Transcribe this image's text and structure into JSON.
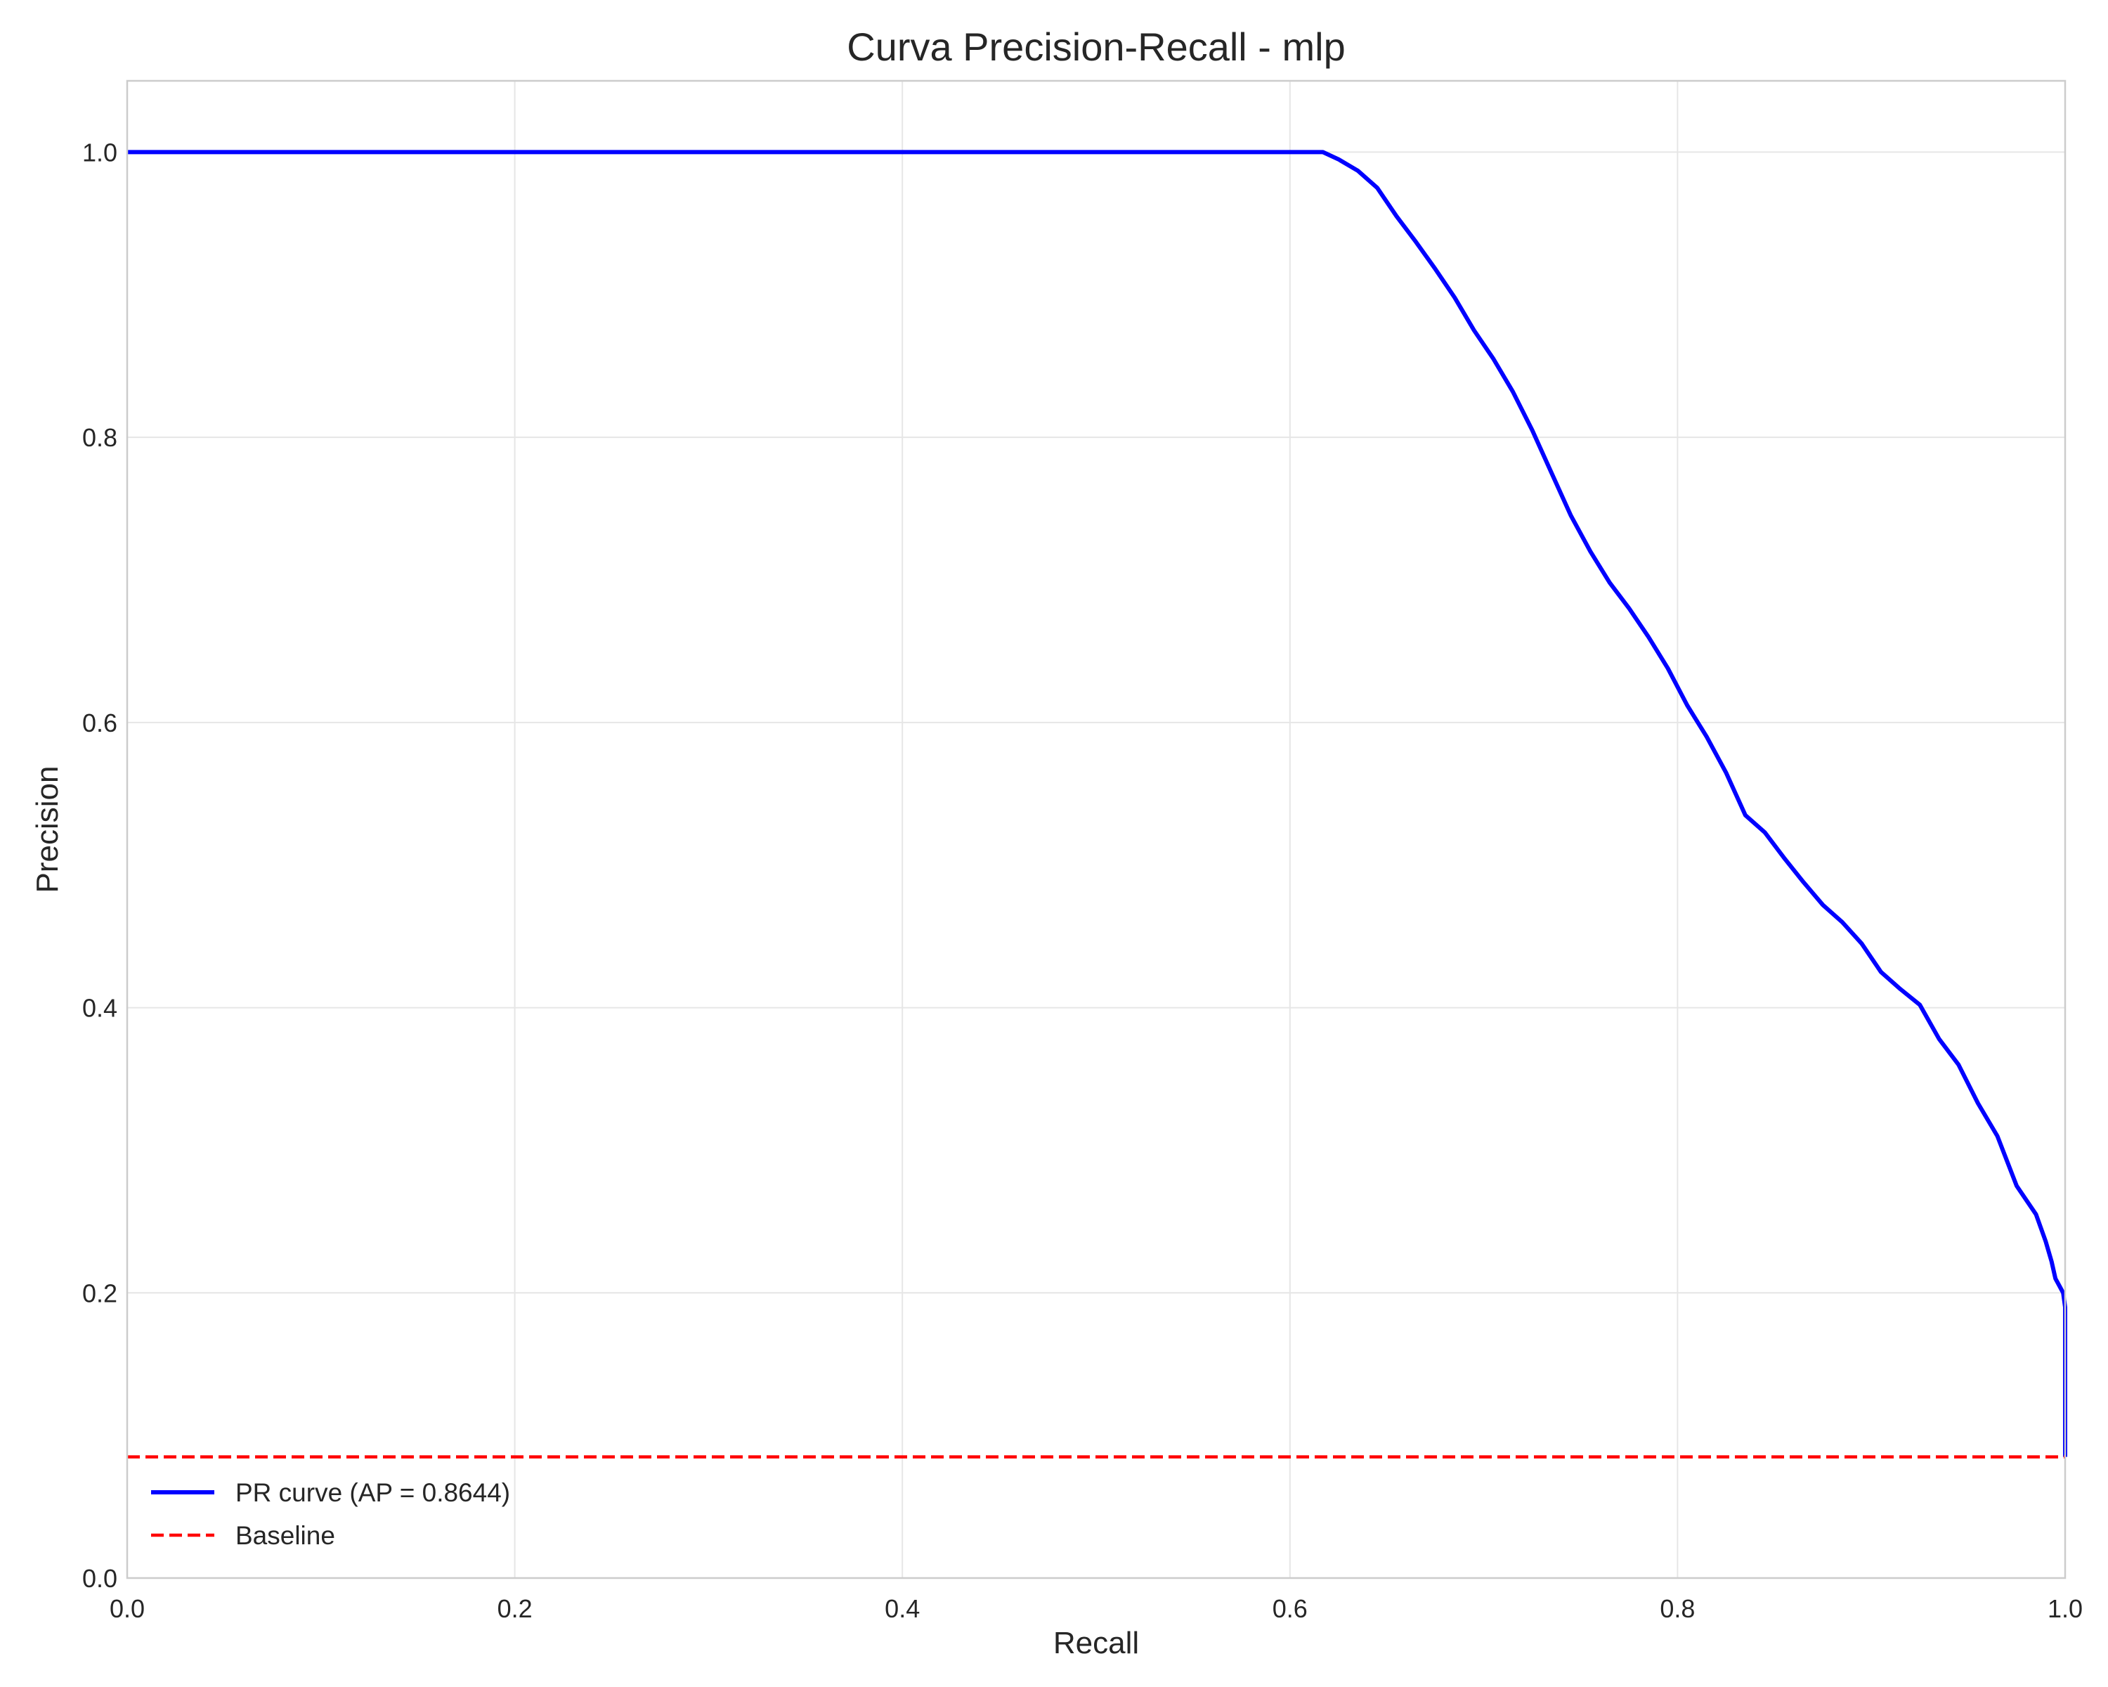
{
  "chart_data": {
    "type": "line",
    "title": "Curva Precision-Recall - mlp",
    "xlabel": "Recall",
    "ylabel": "Precision",
    "xlim": [
      0,
      1
    ],
    "ylim": [
      0,
      1.05
    ],
    "grid": true,
    "legend_position": "lower-left",
    "xticks": [
      0,
      0.2,
      0.4,
      0.6,
      0.8,
      1
    ],
    "yticks": [
      0,
      0.2,
      0.4,
      0.6,
      0.8,
      1
    ],
    "xtick_labels": [
      "0.0",
      "0.2",
      "0.4",
      "0.6",
      "0.8",
      "1.0"
    ],
    "ytick_labels": [
      "0.0",
      "0.2",
      "0.4",
      "0.6",
      "0.8",
      "1.0"
    ],
    "series": [
      {
        "name": "PR curve (AP = 0.8644)",
        "color": "#0000ff",
        "style": "solid",
        "x": [
          0,
          0.1,
          0.2,
          0.3,
          0.4,
          0.5,
          0.6,
          0.617,
          0.625,
          0.635,
          0.645,
          0.655,
          0.665,
          0.675,
          0.685,
          0.695,
          0.705,
          0.715,
          0.725,
          0.735,
          0.745,
          0.755,
          0.765,
          0.775,
          0.785,
          0.795,
          0.805,
          0.815,
          0.825,
          0.835,
          0.845,
          0.855,
          0.865,
          0.875,
          0.885,
          0.895,
          0.905,
          0.915,
          0.925,
          0.935,
          0.945,
          0.955,
          0.965,
          0.975,
          0.985,
          0.99,
          0.993,
          0.995,
          0.997,
          0.999,
          1.0,
          1.0
        ],
        "y": [
          1.0,
          1.0,
          1.0,
          1.0,
          1.0,
          1.0,
          1.0,
          1.0,
          0.995,
          0.987,
          0.975,
          0.955,
          0.937,
          0.918,
          0.898,
          0.875,
          0.855,
          0.832,
          0.805,
          0.775,
          0.745,
          0.72,
          0.698,
          0.68,
          0.66,
          0.638,
          0.612,
          0.59,
          0.565,
          0.535,
          0.523,
          0.505,
          0.488,
          0.472,
          0.46,
          0.445,
          0.425,
          0.413,
          0.402,
          0.378,
          0.36,
          0.333,
          0.31,
          0.275,
          0.255,
          0.236,
          0.222,
          0.21,
          0.205,
          0.2,
          0.19,
          0.085
        ]
      },
      {
        "name": "Baseline",
        "color": "#ff0000",
        "style": "dashed",
        "x": [
          0,
          1
        ],
        "y": [
          0.085,
          0.085
        ]
      }
    ]
  }
}
